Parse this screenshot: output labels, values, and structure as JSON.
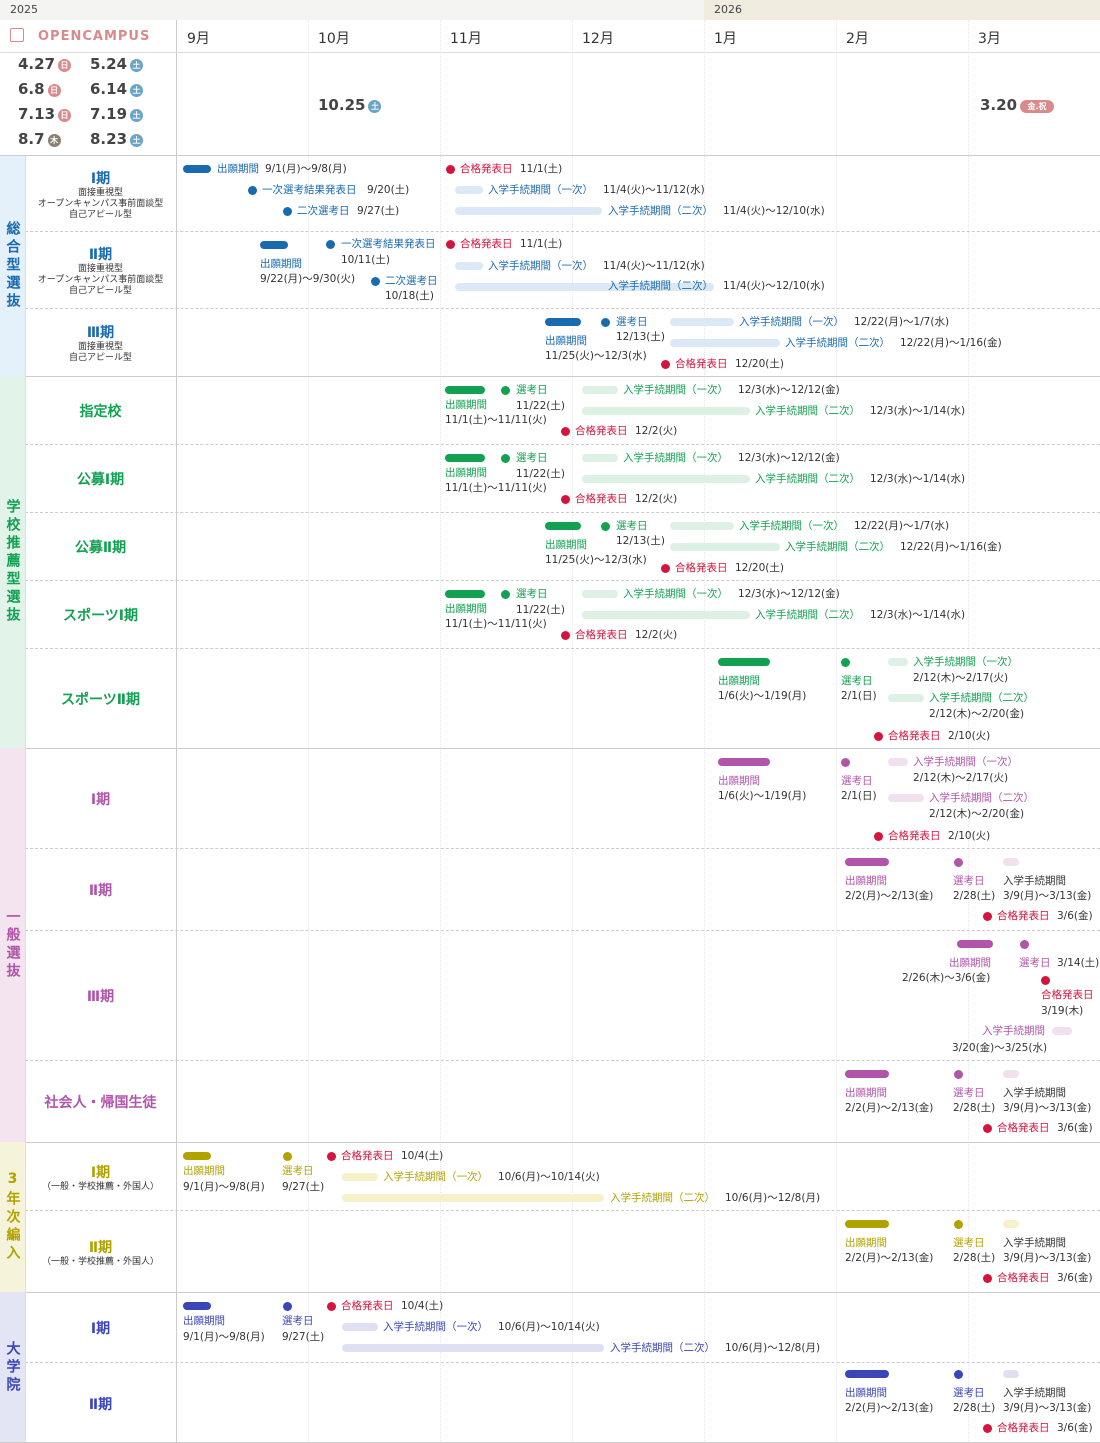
{
  "years": [
    "2025",
    "2026"
  ],
  "months": [
    "9月",
    "10月",
    "11月",
    "12月",
    "1月",
    "2月",
    "3月"
  ],
  "opencampus": {
    "title": "OPENCAMPUS",
    "dates": [
      {
        "d": "4.27",
        "w": "日",
        "c": "#d98a8a"
      },
      {
        "d": "5.24",
        "w": "土",
        "c": "#6aa5c8"
      },
      {
        "d": "6.8",
        "w": "日",
        "c": "#d98a8a"
      },
      {
        "d": "6.14",
        "w": "土",
        "c": "#6aa5c8"
      },
      {
        "d": "7.13",
        "w": "日",
        "c": "#d98a8a"
      },
      {
        "d": "7.19",
        "w": "土",
        "c": "#6aa5c8"
      },
      {
        "d": "8.7",
        "w": "木",
        "c": "#8a8070"
      },
      {
        "d": "8.23",
        "w": "土",
        "c": "#6aa5c8"
      },
      {
        "d": "10.25",
        "w": "土",
        "c": "#6aa5c8"
      },
      {
        "d": "3.20",
        "w": "金.祝",
        "c": "#d98a8a"
      }
    ]
  },
  "categories": [
    {
      "name": "総合型選抜",
      "color": "#1a6ab0",
      "bg": "#e4f0fa"
    },
    {
      "name": "学校推薦型選抜",
      "color": "#12a150",
      "bg": "#e2f4ea"
    },
    {
      "name": "一般選抜",
      "color": "#b055aa",
      "bg": "#f3e4f0"
    },
    {
      "name": "3年次編入",
      "color": "#b0a300",
      "bg": "#f5f3da"
    },
    {
      "name": "大学院",
      "color": "#3a45b8",
      "bg": "#e3e5f4"
    }
  ],
  "subs": [
    {
      "name": "Ⅰ期",
      "desc": [
        "面接重視型",
        "オープンキャンパス事前面談型",
        "自己アピール型"
      ]
    },
    {
      "name": "Ⅱ期",
      "desc": [
        "面接重視型",
        "オープンキャンパス事前面談型",
        "自己アピール型"
      ]
    },
    {
      "name": "Ⅲ期",
      "desc": [
        "面接重視型",
        "自己アピール型"
      ]
    },
    {
      "name": "指定校",
      "desc": []
    },
    {
      "name": "公募Ⅰ期",
      "desc": []
    },
    {
      "name": "公募Ⅱ期",
      "desc": []
    },
    {
      "name": "スポーツⅠ期",
      "desc": []
    },
    {
      "name": "スポーツⅡ期",
      "desc": []
    },
    {
      "name": "Ⅰ期",
      "desc": []
    },
    {
      "name": "Ⅱ期",
      "desc": []
    },
    {
      "name": "Ⅲ期",
      "desc": []
    },
    {
      "name": "社会人・帰国生徒",
      "desc": []
    },
    {
      "name": "Ⅰ期",
      "desc": [
        "（一般・学校推薦・外国人）"
      ]
    },
    {
      "name": "Ⅱ期",
      "desc": [
        "（一般・学校推薦・外国人）"
      ]
    },
    {
      "name": "Ⅰ期",
      "desc": []
    },
    {
      "name": "Ⅱ期",
      "desc": []
    }
  ],
  "texts": {
    "application": "出願期間",
    "exam": "選考日",
    "pass": "合格発表日",
    "proc": "入学手続期間",
    "proc1": "入学手続期間（一次）",
    "proc2": "入学手続期間（二次）",
    "first_result": "一次選考結果発表日",
    "second_exam": "二次選考日",
    "s1_app": "9/1(月)～9/8(月)",
    "s1_fr": "9/20(土)",
    "s1_se": "9/27(土)",
    "s1_pass": "11/1(土)",
    "s1_p1": "11/4(火)～11/12(水)",
    "s1_p2": "11/4(火)～12/10(水)",
    "s2_app": "9/22(月)～9/30(火)",
    "s2_fr": "10/11(土)",
    "s2_se": "10/18(土)",
    "s3_app": "11/25(火)～12/3(水)",
    "s3_ex": "12/13(土)",
    "s3_pass": "12/20(土)",
    "s3_p1": "12/22(月)～1/7(水)",
    "s3_p2": "12/22(月)～1/16(金)",
    "r1_app": "11/1(土)～11/11(火)",
    "r1_ex": "11/22(土)",
    "r1_pass": "12/2(火)",
    "r1_p1": "12/3(水)～12/12(金)",
    "r1_p2": "12/3(水)～1/14(水)",
    "g1_app": "1/6(火)～1/19(月)",
    "g1_ex": "2/1(日)",
    "g1_pass": "2/10(火)",
    "g1_p1": "2/12(木)～2/17(火)",
    "g1_p2": "2/12(木)～2/20(金)",
    "g2_app": "2/2(月)～2/13(金)",
    "g2_ex": "2/28(土)",
    "g2_p": "3/9(月)～3/13(金)",
    "g2_pass": "3/6(金)",
    "g3_app": "2/26(木)～3/6(金)",
    "g3_ex": "3/14(土)",
    "g3_pass": "3/19(木)",
    "g3_p": "3/20(金)～3/25(水)",
    "t1_app": "9/1(月)～9/8(月)",
    "t1_ex": "9/27(土)",
    "t1_pass": "10/4(土)",
    "t1_p1": "10/6(月)～10/14(火)",
    "t1_p2": "10/6(月)～12/8(月)"
  },
  "colors": {
    "pass_dot": "#d4143c"
  }
}
